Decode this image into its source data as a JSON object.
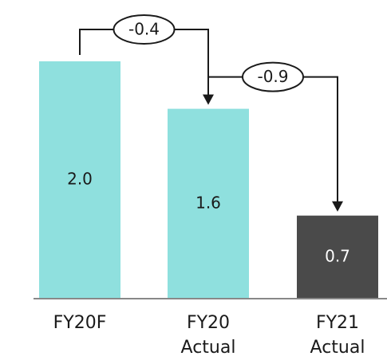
{
  "chart_data": {
    "type": "bar",
    "categories": [
      {
        "line1": "FY20F",
        "line2": ""
      },
      {
        "line1": "FY20",
        "line2": "Actual"
      },
      {
        "line1": "FY21",
        "line2": "Actual"
      }
    ],
    "values": [
      2.0,
      1.6,
      0.7
    ],
    "value_labels": [
      "2.0",
      "1.6",
      "0.7"
    ],
    "bar_colors": [
      "#8fe0de",
      "#8fe0de",
      "#4a4a4a"
    ],
    "label_colors": [
      "#1a1a1a",
      "#1a1a1a",
      "#ffffff"
    ],
    "ylim": [
      0,
      2.0
    ],
    "grid": false,
    "annotations": [
      {
        "from": 0,
        "to": 1,
        "label": "-0.4"
      },
      {
        "from": 1,
        "to": 2,
        "label": "-0.9"
      }
    ],
    "axis_color": "#888888",
    "line_color": "#1a1a1a"
  }
}
